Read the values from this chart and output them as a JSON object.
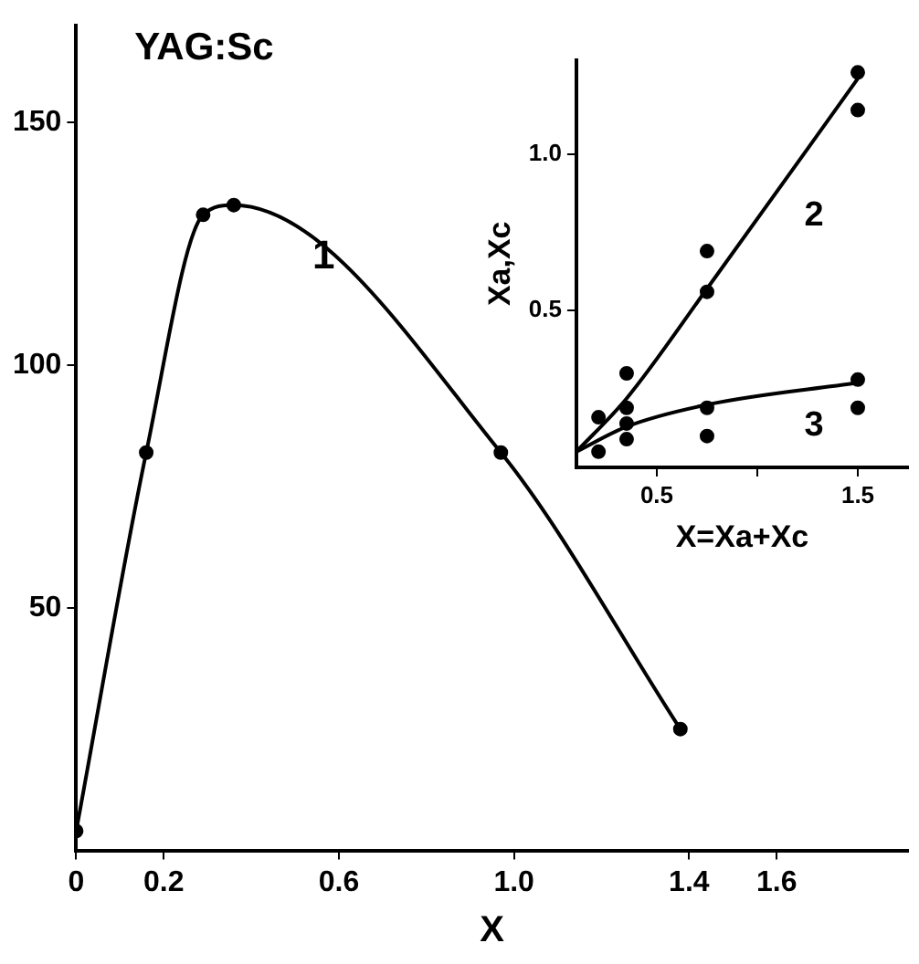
{
  "chart_data": [
    {
      "type": "line",
      "title": "YAG:Sc",
      "xlabel": "X",
      "xlim": [
        0,
        1.9
      ],
      "ylim": [
        0,
        170
      ],
      "xticks": [
        0,
        0.2,
        0.6,
        {
          "value": 1,
          "label": "1.0"
        },
        1.4,
        1.6
      ],
      "yticks": [
        50,
        100,
        150
      ],
      "grid": false,
      "legend": false,
      "marker": "circle",
      "series": [
        {
          "name": "1",
          "color": "#000000",
          "x": [
            0,
            0.16,
            0.29,
            0.36,
            0.97,
            1.38
          ],
          "values": [
            4,
            82,
            131,
            133,
            82,
            25
          ]
        }
      ]
    },
    {
      "type": "scatter",
      "xlabel": "X=Xa+Xc",
      "ylabel": "Xa,Xc",
      "xlim": [
        0.1,
        1.75
      ],
      "ylim": [
        0,
        1.3
      ],
      "xticks": [
        0.5,
        {
          "value": 1,
          "label": null
        },
        1.5
      ],
      "yticks": [
        0.5,
        {
          "value": 1,
          "label": "1.0"
        }
      ],
      "grid": false,
      "legend": false,
      "marker": "circle",
      "series": [
        {
          "color": "#000000",
          "x": [
            0.21,
            0.35,
            0.35,
            0.75,
            0.75,
            1.5,
            1.5
          ],
          "values": [
            0.16,
            0.3,
            0.19,
            0.69,
            0.56,
            1.26,
            1.14
          ]
        },
        {
          "color": "#000000",
          "x": [
            0.21,
            0.35,
            0.35,
            0.75,
            0.75,
            1.5,
            1.5
          ],
          "values": [
            0.05,
            0.14,
            0.09,
            0.19,
            0.1,
            0.28,
            0.19
          ]
        },
        {
          "type": "line",
          "name": "2",
          "color": "#000000",
          "marker": "none",
          "x": [
            0.1,
            0.35,
            0.75,
            1.5
          ],
          "values": [
            0.05,
            0.22,
            0.57,
            1.24
          ]
        },
        {
          "type": "line",
          "name": "3",
          "color": "#000000",
          "marker": "none",
          "x": [
            0.1,
            0.35,
            0.75,
            1.5
          ],
          "values": [
            0.05,
            0.13,
            0.2,
            0.27
          ]
        }
      ]
    }
  ]
}
